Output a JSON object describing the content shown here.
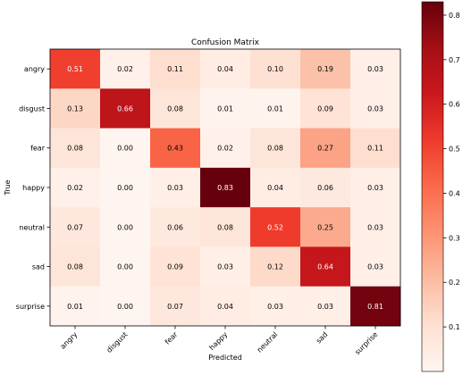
{
  "chart_data": {
    "type": "heatmap",
    "title": "Confusion Matrix",
    "xlabel": "Predicted",
    "ylabel": "True",
    "x_categories": [
      "angry",
      "disgust",
      "fear",
      "happy",
      "neutral",
      "sad",
      "surprise"
    ],
    "y_categories": [
      "angry",
      "disgust",
      "fear",
      "happy",
      "neutral",
      "sad",
      "surprise"
    ],
    "values": [
      [
        0.51,
        0.02,
        0.11,
        0.04,
        0.1,
        0.19,
        0.03
      ],
      [
        0.13,
        0.66,
        0.08,
        0.01,
        0.01,
        0.09,
        0.03
      ],
      [
        0.08,
        0.0,
        0.43,
        0.02,
        0.08,
        0.27,
        0.11
      ],
      [
        0.02,
        0.0,
        0.03,
        0.83,
        0.04,
        0.06,
        0.03
      ],
      [
        0.07,
        0.0,
        0.06,
        0.08,
        0.52,
        0.25,
        0.03
      ],
      [
        0.08,
        0.0,
        0.09,
        0.03,
        0.12,
        0.64,
        0.03
      ],
      [
        0.01,
        0.0,
        0.07,
        0.04,
        0.03,
        0.03,
        0.81
      ]
    ],
    "colormap": "Reds",
    "color_range": [
      0.0,
      0.83
    ],
    "colorbar_ticks": [
      "0.1",
      "0.2",
      "0.3",
      "0.4",
      "0.5",
      "0.6",
      "0.7",
      "0.8"
    ],
    "grid": false
  }
}
